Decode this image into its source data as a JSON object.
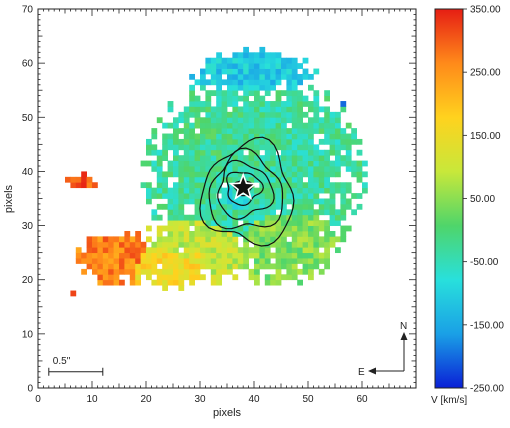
{
  "chart_data": {
    "type": "heatmap",
    "xlabel": "pixels",
    "ylabel": "pixels",
    "xlim": [
      0,
      70
    ],
    "ylim": [
      0,
      70
    ],
    "xticks": [
      "0",
      "10",
      "20",
      "30",
      "40",
      "50",
      "60"
    ],
    "yticks": [
      "0",
      "10",
      "20",
      "30",
      "40",
      "50",
      "60",
      "70"
    ],
    "colorbar": {
      "label": "V [km/s]",
      "min": -250,
      "max": 350,
      "ticks": [
        "350.00",
        "250.00",
        "150.00",
        "50.00",
        "-50.00",
        "-150.00",
        "-250.00"
      ],
      "colormap": [
        "#0a1fd6",
        "#1aa0e6",
        "#28e0dc",
        "#4fd56a",
        "#c8e83a",
        "#ffd21e",
        "#ff8a1a",
        "#e61e14"
      ]
    },
    "star": {
      "x": 38,
      "y": 37
    },
    "scalebar": {
      "label": "0.5\"",
      "x_start": 2,
      "x_end": 12,
      "y": 3
    },
    "compass": {
      "north": "N",
      "east": "E"
    },
    "contours": [
      {
        "level": 1,
        "center": [
          38,
          37
        ],
        "rx": 1.6,
        "ry": 1.4
      },
      {
        "level": 2,
        "center": [
          38,
          37
        ],
        "rx": 3.2,
        "ry": 3.0
      },
      {
        "level": 3,
        "center": [
          38.2,
          36.5
        ],
        "rx": 5.0,
        "ry": 5.0
      },
      {
        "level": 4,
        "center": [
          38.5,
          36
        ],
        "rx": 6.8,
        "ry": 7.0
      },
      {
        "level": 5,
        "center": [
          39,
          35.8
        ],
        "rx": 8.4,
        "ry": 9.2
      }
    ],
    "regions": [
      {
        "cx": 38,
        "cy": 37,
        "rx": 9,
        "ry": 9,
        "v": -70
      },
      {
        "cx": 36,
        "cy": 45,
        "rx": 12,
        "ry": 9,
        "v": -20
      },
      {
        "cx": 40,
        "cy": 40,
        "rx": 18,
        "ry": 17,
        "v": -30
      },
      {
        "cx": 45,
        "cy": 28,
        "rx": 10,
        "ry": 8,
        "v": 40
      },
      {
        "cx": 30,
        "cy": 26,
        "rx": 10,
        "ry": 6,
        "v": 90
      },
      {
        "cx": 24,
        "cy": 23,
        "rx": 10,
        "ry": 4,
        "v": 160
      },
      {
        "cx": 15,
        "cy": 24,
        "rx": 7,
        "ry": 4.5,
        "v": 270
      },
      {
        "cx": 8,
        "cy": 38,
        "rx": 2.5,
        "ry": 1.5,
        "v": 300
      },
      {
        "cx": 40,
        "cy": 58,
        "rx": 10,
        "ry": 4,
        "v": -110
      }
    ]
  }
}
